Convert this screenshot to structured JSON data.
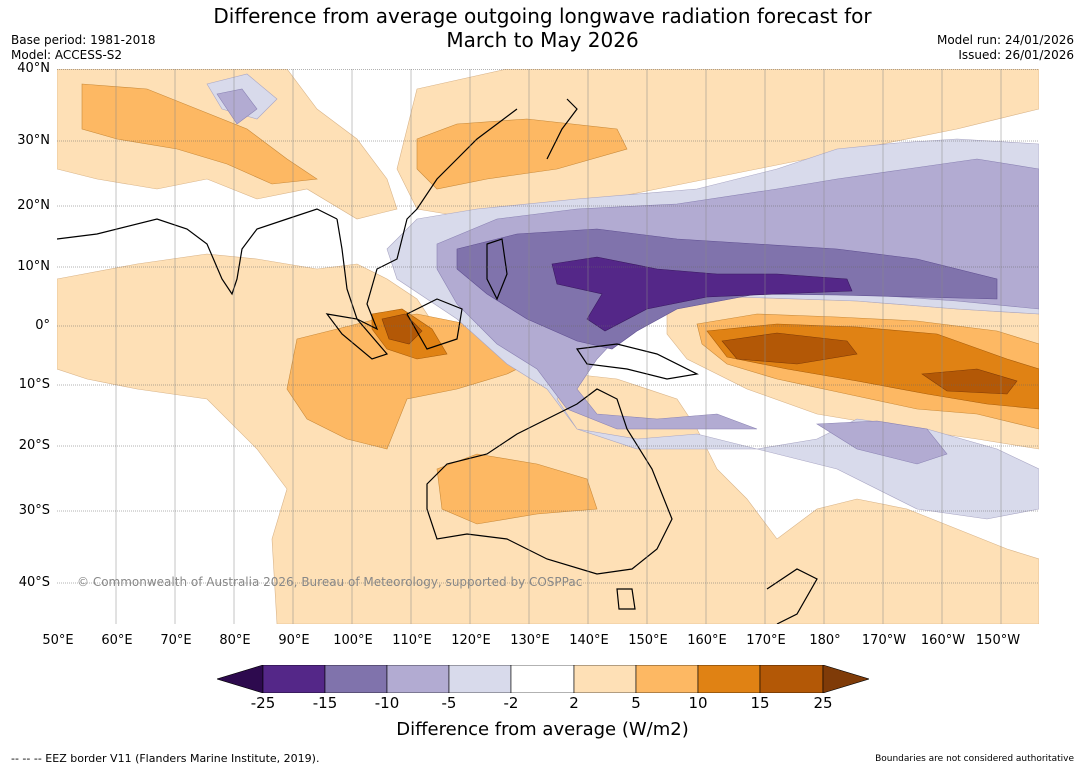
{
  "header": {
    "title_line1": "Difference from average outgoing longwave radiation forecast for",
    "title_line2": "March to May 2026",
    "base_period": "Base period: 1981-2018",
    "model": "Model: ACCESS-S2",
    "model_run": "Model run: 24/01/2026",
    "issued": "Issued: 26/01/2026"
  },
  "map": {
    "lat_labels": [
      "40°N",
      "30°N",
      "20°N",
      "10°N",
      "0°",
      "10°S",
      "20°S",
      "30°S",
      "40°S"
    ],
    "lon_labels": [
      "50°E",
      "60°E",
      "70°E",
      "80°E",
      "90°E",
      "100°E",
      "110°E",
      "120°E",
      "130°E",
      "140°E",
      "150°E",
      "160°E",
      "170°E",
      "180°",
      "170°W",
      "160°W",
      "150°W"
    ],
    "copyright": "© Commonwealth of Australia 2026, Bureau of Meteorology, supported by COSPPac"
  },
  "colorbar": {
    "colors": [
      "#2d0a4e",
      "#542788",
      "#8073ac",
      "#b2abd2",
      "#d8daeb",
      "#ffffff",
      "#fee0b6",
      "#fdb863",
      "#e08214",
      "#b35806",
      "#7f3b08"
    ],
    "ticks": [
      "-25",
      "-15",
      "-10",
      "-5",
      "-2",
      "2",
      "5",
      "10",
      "15",
      "25"
    ],
    "title": "Difference from average (W/m2)"
  },
  "footer": {
    "eez": "--  --  -- EEZ border V11 (Flanders Marine Institute, 2019).",
    "note": "Boundaries are not considered authoritative"
  }
}
